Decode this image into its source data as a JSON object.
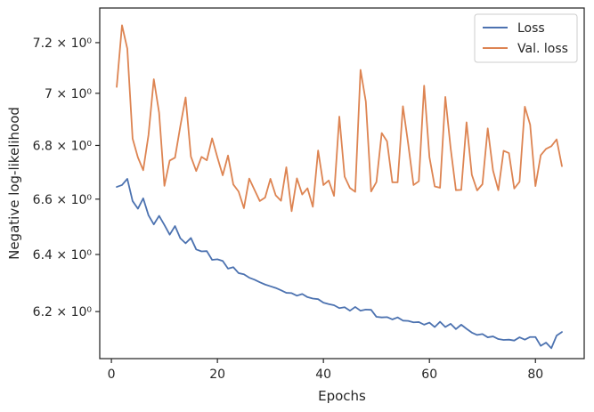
{
  "chart_data": {
    "type": "line",
    "xlabel": "Epochs",
    "ylabel": "Negative log-likelihood",
    "yscale": "log",
    "xlim": [
      -2.2,
      89.2
    ],
    "ylim": [
      6.04,
      7.34
    ],
    "x_ticks": [
      0,
      20,
      40,
      60,
      80
    ],
    "y_ticks": [
      {
        "value": 6.2,
        "label": "6.2 × 10⁰"
      },
      {
        "value": 6.4,
        "label": "6.4 × 10⁰"
      },
      {
        "value": 6.6,
        "label": "6.6 × 10⁰"
      },
      {
        "value": 6.8,
        "label": "6.8 × 10⁰"
      },
      {
        "value": 7.0,
        "label": "7 × 10⁰"
      },
      {
        "value": 7.2,
        "label": "7.2 × 10⁰"
      }
    ],
    "grid": false,
    "legend_position": "top-right",
    "x": [
      1,
      2,
      3,
      4,
      5,
      6,
      7,
      8,
      9,
      10,
      11,
      12,
      13,
      14,
      15,
      16,
      17,
      18,
      19,
      20,
      21,
      22,
      23,
      24,
      25,
      26,
      27,
      28,
      29,
      30,
      31,
      32,
      33,
      34,
      35,
      36,
      37,
      38,
      39,
      40,
      41,
      42,
      43,
      44,
      45,
      46,
      47,
      48,
      49,
      50,
      51,
      52,
      53,
      54,
      55,
      56,
      57,
      58,
      59,
      60,
      61,
      62,
      63,
      64,
      65,
      66,
      67,
      68,
      69,
      70,
      71,
      72,
      73,
      74,
      75,
      76,
      77,
      78,
      79,
      80,
      81,
      82,
      83,
      84,
      85
    ],
    "series": [
      {
        "name": "Loss",
        "color": "#4c72b0",
        "values": [
          6.645,
          6.652,
          6.675,
          6.593,
          6.565,
          6.603,
          6.541,
          6.508,
          6.539,
          6.506,
          6.471,
          6.502,
          6.458,
          6.44,
          6.459,
          6.418,
          6.411,
          6.412,
          6.381,
          6.383,
          6.377,
          6.35,
          6.355,
          6.334,
          6.33,
          6.318,
          6.311,
          6.302,
          6.294,
          6.288,
          6.282,
          6.274,
          6.265,
          6.264,
          6.255,
          6.261,
          6.25,
          6.245,
          6.243,
          6.231,
          6.226,
          6.222,
          6.212,
          6.215,
          6.203,
          6.216,
          6.203,
          6.207,
          6.206,
          6.182,
          6.18,
          6.181,
          6.173,
          6.18,
          6.169,
          6.168,
          6.163,
          6.164,
          6.155,
          6.162,
          6.147,
          6.165,
          6.147,
          6.158,
          6.14,
          6.155,
          6.141,
          6.128,
          6.12,
          6.123,
          6.112,
          6.115,
          6.106,
          6.103,
          6.104,
          6.101,
          6.112,
          6.104,
          6.113,
          6.113,
          6.083,
          6.094,
          6.075,
          6.118,
          6.13
        ]
      },
      {
        "name": "Val. loss",
        "color": "#dd8452",
        "values": [
          7.025,
          7.27,
          7.176,
          6.826,
          6.755,
          6.707,
          6.84,
          7.055,
          6.925,
          6.649,
          6.743,
          6.754,
          6.873,
          6.984,
          6.758,
          6.704,
          6.757,
          6.744,
          6.827,
          6.755,
          6.688,
          6.762,
          6.654,
          6.628,
          6.567,
          6.676,
          6.634,
          6.593,
          6.606,
          6.675,
          6.614,
          6.594,
          6.718,
          6.556,
          6.677,
          6.617,
          6.64,
          6.572,
          6.781,
          6.652,
          6.669,
          6.612,
          6.91,
          6.683,
          6.641,
          6.627,
          7.092,
          6.968,
          6.628,
          6.663,
          6.847,
          6.816,
          6.662,
          6.662,
          6.95,
          6.805,
          6.652,
          6.666,
          7.03,
          6.756,
          6.647,
          6.642,
          6.986,
          6.79,
          6.633,
          6.634,
          6.888,
          6.69,
          6.632,
          6.655,
          6.865,
          6.706,
          6.633,
          6.78,
          6.771,
          6.639,
          6.664,
          6.948,
          6.879,
          6.648,
          6.763,
          6.787,
          6.797,
          6.823,
          6.722
        ]
      }
    ]
  }
}
